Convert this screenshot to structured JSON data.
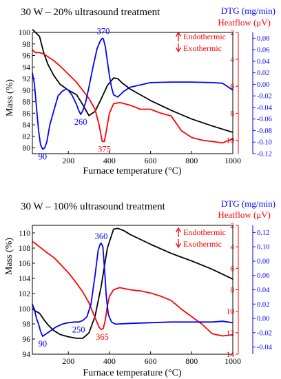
{
  "chart_data": [
    {
      "type": "line",
      "title": "30 W – 20% ultrasound treatment",
      "xlabel": "Furnace temperature (°C)",
      "xlim": [
        25,
        1000
      ],
      "xticks": [
        "200",
        "400",
        "600",
        "800",
        "1000"
      ],
      "ylabel_left": "Mass (%)",
      "ylim_left": [
        79,
        100
      ],
      "yticks_left": [
        "80",
        "82",
        "84",
        "86",
        "88",
        "90",
        "92",
        "94",
        "96",
        "98",
        "100"
      ],
      "ylabel_heatflow": "Heatflow (μV)",
      "ylim_heatflow": [
        11,
        2
      ],
      "yticks_heatflow": [
        "2",
        "4",
        "6",
        "8",
        "10"
      ],
      "ylabel_dtg": "DTG (mg/min)",
      "ylim_dtg": [
        -0.12,
        0.09
      ],
      "yticks_dtg": [
        "0.08",
        "0.06",
        "0.04",
        "0.02",
        "0.00",
        "-0.02",
        "-0.04",
        "-0.06",
        "-0.08",
        "-0.10",
        "-0.12"
      ],
      "legend": {
        "endo": "Endothermic",
        "exo": "Exothermic"
      },
      "annotations": [
        {
          "text": "90",
          "series": "DTG",
          "x": 75,
          "y": -0.112
        },
        {
          "text": "260",
          "series": "DTG",
          "x": 260,
          "y": -0.052
        },
        {
          "text": "370",
          "series": "DTG",
          "x": 370,
          "y": 0.08
        },
        {
          "text": "375",
          "series": "Heatflow",
          "x": 375,
          "y": 10.1
        }
      ],
      "series": [
        {
          "name": "Mass",
          "axis": "left",
          "color": "#000000",
          "x": [
            25,
            40,
            60,
            80,
            100,
            130,
            160,
            200,
            240,
            270,
            300,
            330,
            360,
            390,
            420,
            440,
            460,
            500,
            550,
            600,
            700,
            800,
            900,
            1000
          ],
          "y": [
            100.5,
            100,
            99.3,
            96.5,
            94.5,
            92.5,
            91,
            90,
            89.2,
            87.5,
            85.6,
            86.3,
            88.5,
            90.8,
            92.1,
            92,
            91.3,
            90.2,
            89.2,
            88.2,
            86.5,
            85,
            83.8,
            82.7
          ]
        },
        {
          "name": "Heatflow",
          "axis": "heatflow",
          "color": "#ff0000",
          "x": [
            25,
            40,
            60,
            80,
            100,
            130,
            160,
            200,
            240,
            270,
            300,
            330,
            350,
            365,
            375,
            385,
            400,
            420,
            450,
            500,
            550,
            600,
            650,
            700,
            750,
            800,
            850,
            900,
            950,
            1000
          ],
          "y": [
            3.3,
            3.5,
            3.5,
            3.6,
            3.8,
            4.1,
            4.5,
            5.1,
            5.7,
            6.3,
            6.9,
            7.7,
            8.9,
            10.1,
            10.1,
            9.3,
            8,
            7.3,
            7.2,
            7.4,
            7.7,
            7.7,
            8,
            8.2,
            9.3,
            9.8,
            10,
            10.1,
            10.2,
            9.9
          ]
        },
        {
          "name": "DTG",
          "axis": "dtg",
          "color": "#0000ff",
          "x": [
            25,
            35,
            45,
            55,
            65,
            75,
            85,
            95,
            110,
            130,
            150,
            170,
            190,
            200,
            220,
            240,
            250,
            260,
            270,
            285,
            300,
            320,
            340,
            355,
            365,
            370,
            380,
            390,
            400,
            410,
            420,
            440,
            470,
            500,
            600,
            700,
            800,
            900,
            950,
            1000
          ],
          "y": [
            0.02,
            0,
            -0.04,
            -0.08,
            -0.105,
            -0.112,
            -0.11,
            -0.1,
            -0.07,
            -0.045,
            -0.02,
            -0.012,
            -0.008,
            -0.01,
            -0.02,
            -0.035,
            -0.045,
            -0.052,
            -0.046,
            -0.03,
            -0.005,
            0.03,
            0.062,
            0.075,
            0.08,
            0.079,
            0.065,
            0.04,
            0.015,
            -0.005,
            -0.018,
            -0.022,
            -0.012,
            -0.005,
            0.003,
            0.004,
            0.004,
            0.003,
            0.002,
            -0.01
          ]
        }
      ]
    },
    {
      "type": "line",
      "title": "30 W – 100% ultrasound treatment",
      "xlabel": "Furnace temperature (°C)",
      "xlim": [
        25,
        1000
      ],
      "xticks": [
        "200",
        "400",
        "600",
        "800",
        "1000"
      ],
      "ylabel_left": "Mass (%)",
      "ylim_left": [
        94,
        111
      ],
      "yticks_left": [
        "94",
        "96",
        "98",
        "100",
        "102",
        "104",
        "106",
        "108",
        "110"
      ],
      "ylabel_heatflow": "Heatflow (μV)",
      "ylim_heatflow": [
        14,
        2
      ],
      "yticks_heatflow": [
        "2",
        "4",
        "6",
        "8",
        "10",
        "12",
        "14"
      ],
      "ylabel_dtg": "DTG (mg/min)",
      "ylim_dtg": [
        -0.05,
        0.13
      ],
      "yticks_dtg": [
        "0.12",
        "0.10",
        "0.08",
        "0.06",
        "0.04",
        "0.02",
        "0.00",
        "-0.02",
        "-0.04"
      ],
      "legend": {
        "endo": "Endothermic",
        "exo": "Exothermic"
      },
      "annotations": [
        {
          "text": "90",
          "series": "DTG",
          "x": 75,
          "y": -0.025
        },
        {
          "text": "250",
          "series": "DTG",
          "x": 250,
          "y": -0.005
        },
        {
          "text": "360",
          "series": "DTG",
          "x": 360,
          "y": 0.105
        },
        {
          "text": "365",
          "series": "Heatflow",
          "x": 365,
          "y": 11.7
        }
      ],
      "series": [
        {
          "name": "Mass",
          "axis": "left",
          "color": "#000000",
          "x": [
            25,
            40,
            60,
            80,
            100,
            130,
            160,
            200,
            240,
            270,
            300,
            330,
            360,
            390,
            420,
            440,
            470,
            500,
            600,
            700,
            800,
            900,
            1000
          ],
          "y": [
            100,
            99.7,
            99.4,
            98.6,
            97.9,
            97.1,
            96.6,
            96.3,
            96.1,
            96.1,
            96.8,
            99,
            103,
            108,
            110.5,
            110.6,
            110.3,
            109.8,
            108.5,
            107.3,
            106.3,
            105.2,
            103.9
          ]
        },
        {
          "name": "Heatflow",
          "axis": "heatflow",
          "color": "#ff0000",
          "x": [
            25,
            40,
            60,
            80,
            100,
            130,
            160,
            200,
            240,
            270,
            300,
            330,
            350,
            360,
            370,
            380,
            390,
            400,
            420,
            450,
            500,
            550,
            600,
            650,
            700,
            750,
            800,
            850,
            900,
            950,
            1000
          ],
          "y": [
            3.5,
            3.7,
            4,
            4.3,
            4.6,
            5,
            5.6,
            6.4,
            7.4,
            8.2,
            9.2,
            10.6,
            11.5,
            11.7,
            11.6,
            10.8,
            9.5,
            8.6,
            8,
            7.8,
            8,
            8.1,
            8.3,
            8.6,
            9,
            9.8,
            10.5,
            11.2,
            12.1,
            12.3,
            12.2
          ]
        },
        {
          "name": "DTG",
          "axis": "dtg",
          "color": "#0000ff",
          "x": [
            25,
            35,
            45,
            55,
            65,
            75,
            90,
            110,
            140,
            170,
            200,
            230,
            250,
            270,
            290,
            310,
            330,
            345,
            355,
            360,
            368,
            378,
            385,
            395,
            410,
            430,
            500,
            600,
            700,
            800,
            900,
            950,
            1000
          ],
          "y": [
            0.02,
            0.012,
            0,
            -0.008,
            -0.018,
            -0.025,
            -0.022,
            -0.018,
            -0.012,
            -0.008,
            -0.006,
            -0.005,
            -0.005,
            -0.003,
            0.002,
            0.02,
            0.06,
            0.095,
            0.104,
            0.105,
            0.1,
            0.06,
            0.03,
            0.005,
            -0.005,
            -0.008,
            -0.007,
            -0.006,
            -0.005,
            -0.005,
            -0.005,
            -0.004,
            -0.006
          ]
        }
      ]
    }
  ]
}
